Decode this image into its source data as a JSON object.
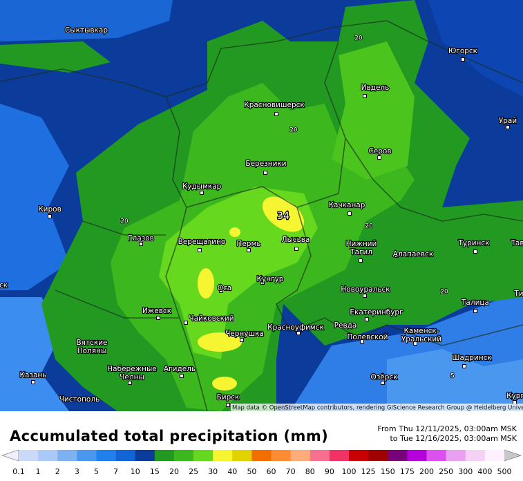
{
  "map": {
    "cities": [
      [
        "Сыктывкар"
      ],
      [
        "Югорск"
      ],
      [
        "Ивдель"
      ],
      [
        "Красновишерск"
      ],
      [
        "Урай"
      ],
      [
        "Серов"
      ],
      [
        "Березники"
      ],
      [
        "Кудымкар"
      ],
      [
        "Качканар"
      ],
      [
        "Киров"
      ],
      [
        "Глазов"
      ],
      [
        "Верещагино"
      ],
      [
        "Пермь"
      ],
      [
        "Лысьва"
      ],
      [
        "Нижний",
        "Тагил"
      ],
      [
        "Туринск"
      ],
      [
        "Тав"
      ],
      [
        "Алапаевск"
      ],
      [
        "Кунгур"
      ],
      [
        "Оса"
      ],
      [
        "Новоуральск"
      ],
      [
        "ск"
      ],
      [
        "Ти"
      ],
      [
        "Талица"
      ],
      [
        "Ижевск"
      ],
      [
        "Екатеринбург"
      ],
      [
        "Чайковский"
      ],
      [
        "Красноуфимск"
      ],
      [
        "Ревда"
      ],
      [
        "Чернушка"
      ],
      [
        "Полевской"
      ],
      [
        "Каменск-",
        "Уральский"
      ],
      [
        "Вятские",
        "Поляны"
      ],
      [
        "Шадринск"
      ],
      [
        "Набережные",
        "Челны"
      ],
      [
        "Агидель"
      ],
      [
        "Казань"
      ],
      [
        "Озёрск"
      ],
      [
        "Чистополь"
      ],
      [
        "Бирск"
      ],
      [
        "Кург"
      ]
    ],
    "contour_labels": [
      "20",
      "20",
      "20",
      "20",
      "20",
      "5"
    ],
    "max_label": "34",
    "attribution": "Map data © OpenStreetMap contributors, rendering GIScience Research Group @ Heidelberg University"
  },
  "footer": {
    "title": "Accumulated total precipitation (mm)",
    "period": [
      "From Thu 12/11/2025, 03:00am MSK",
      "to Tue 12/16/2025, 03:00am MSK"
    ]
  },
  "legend": {
    "labels": [
      "0.1",
      "1",
      "2",
      "3",
      "5",
      "7",
      "10",
      "15",
      "20",
      "25",
      "30",
      "40",
      "50",
      "60",
      "70",
      "80",
      "90",
      "100",
      "125",
      "150",
      "175",
      "200",
      "250",
      "300",
      "400",
      "500"
    ],
    "colors": [
      "#c9d9f8",
      "#a9c9f7",
      "#7cb2f0",
      "#4a97ef",
      "#1f80ee",
      "#1265d6",
      "#0b3c9c",
      "#229a22",
      "#3cb81e",
      "#66d81e",
      "#f5f532",
      "#e2d200",
      "#f26e00",
      "#ff8c32",
      "#ffac7a",
      "#f77090",
      "#f03264",
      "#c80000",
      "#a00000",
      "#780078",
      "#b400dc",
      "#dc50f0",
      "#eaa0f0",
      "#f5d2f5",
      "#fff0ff"
    ],
    "under_color": "#f0f0fc",
    "over_color": "#c8c8c8"
  }
}
